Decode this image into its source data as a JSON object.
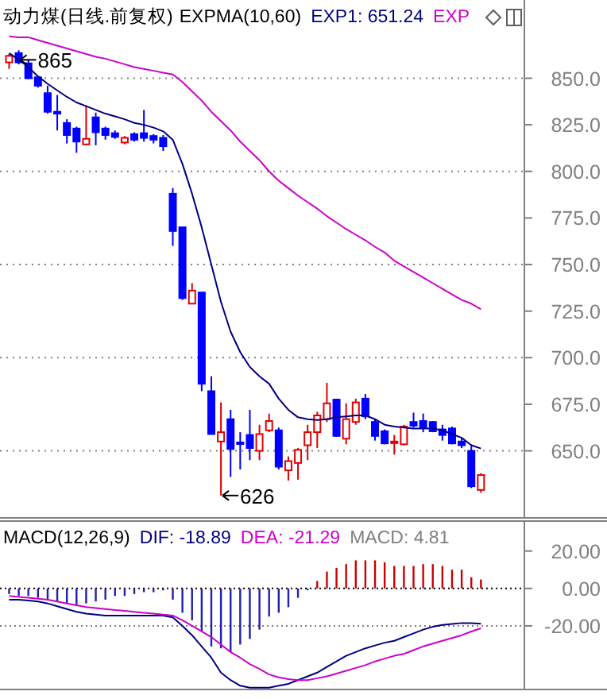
{
  "chart_data": [
    {
      "type": "candlestick",
      "title": "动力煤(日线.前复权)",
      "subtitle": "EXPMA(10,60)",
      "tick_labels": "y",
      "legend": "top",
      "grid": "y",
      "categories": [
        null,
        null,
        null,
        null,
        null,
        null,
        null,
        null,
        null,
        null,
        null,
        null,
        null,
        null,
        null,
        null,
        null,
        null,
        null,
        null,
        null,
        null,
        null,
        null,
        null,
        null,
        null,
        null,
        null,
        null,
        null,
        null,
        null,
        null,
        null,
        null,
        null,
        null,
        null,
        null,
        null,
        null,
        null,
        null,
        null,
        null,
        null,
        null,
        null,
        null
      ],
      "ohlc": [
        [
          858.5,
          863,
          855,
          862
        ],
        [
          863.5,
          865,
          857.5,
          858.5
        ],
        [
          858,
          860,
          849.5,
          850
        ],
        [
          850.5,
          850.5,
          845,
          846
        ],
        [
          842,
          846,
          831,
          832
        ],
        [
          832,
          841,
          822,
          831
        ],
        [
          826,
          828,
          815,
          819.5
        ],
        [
          823,
          824,
          810,
          816
        ],
        [
          814.5,
          835.5,
          814,
          817.5
        ],
        [
          829,
          831.5,
          814,
          821
        ],
        [
          823,
          824,
          817,
          819.5
        ],
        [
          820.5,
          822,
          817.5,
          818.5
        ],
        [
          815.5,
          819,
          814.5,
          818
        ],
        [
          820,
          821,
          816,
          817
        ],
        [
          820.5,
          833,
          816,
          818
        ],
        [
          819,
          820,
          815,
          817
        ],
        [
          818,
          819.5,
          811,
          813.5
        ],
        [
          788,
          791,
          760,
          768
        ],
        [
          770,
          770,
          731,
          732
        ],
        [
          729,
          740,
          729,
          736
        ],
        [
          735,
          735,
          682,
          686
        ],
        [
          682,
          690,
          659,
          659
        ],
        [
          655,
          676,
          626,
          660
        ],
        [
          667,
          672,
          636,
          651
        ],
        [
          654.5,
          660,
          640,
          654
        ],
        [
          658.5,
          672,
          645,
          651.5
        ],
        [
          650,
          664,
          645,
          659
        ],
        [
          661,
          670,
          660,
          666
        ],
        [
          661,
          662.5,
          640,
          641.5
        ],
        [
          639.5,
          647,
          634,
          644.5
        ],
        [
          643.5,
          651.5,
          634.5,
          650.5
        ],
        [
          653,
          664,
          645,
          660
        ],
        [
          660,
          671,
          651.5,
          669
        ],
        [
          667,
          686.5,
          665.5,
          675.5
        ],
        [
          677.5,
          678,
          657.5,
          658
        ],
        [
          656.5,
          675.5,
          653.5,
          667
        ],
        [
          665.5,
          678,
          664,
          676
        ],
        [
          678,
          680.5,
          667,
          668.5
        ],
        [
          665.5,
          667,
          655.5,
          658
        ],
        [
          660.5,
          661.5,
          653.5,
          654
        ],
        [
          654.5,
          658.5,
          648,
          655
        ],
        [
          653.5,
          664,
          653,
          663
        ],
        [
          665.5,
          670.5,
          662.5,
          663.5
        ],
        [
          666,
          670,
          660,
          662.5
        ],
        [
          665.5,
          666,
          660,
          660.5
        ],
        [
          661.5,
          664,
          655.5,
          658.5
        ],
        [
          662,
          663,
          653.5,
          654
        ],
        [
          655,
          657,
          651.5,
          653
        ],
        [
          650,
          653.5,
          630,
          631
        ],
        [
          629,
          638,
          627.5,
          637
        ]
      ],
      "series": [
        {
          "name": "EXP1: 651.24",
          "type": "line",
          "color": "#000080",
          "values": [
            863.5,
            860,
            856,
            851,
            847,
            843.5,
            840,
            837,
            835,
            833,
            831,
            829.5,
            828,
            826,
            825,
            823.5,
            821.5,
            817,
            804,
            788,
            770,
            750,
            730,
            714,
            703,
            695,
            690,
            686,
            678,
            672,
            668,
            667,
            666.5,
            667,
            668,
            668.5,
            669,
            669,
            667,
            664,
            663,
            662.5,
            662,
            662,
            662,
            661,
            659,
            657,
            653,
            651.24
          ]
        },
        {
          "name": "EXP",
          "type": "line",
          "color": "#cc00cc",
          "values": [
            872.5,
            872,
            872,
            870.5,
            869,
            867.5,
            866,
            864.5,
            863,
            861.5,
            860.5,
            859,
            857.5,
            856,
            855,
            854,
            853,
            852,
            848,
            843,
            838,
            832,
            827,
            822,
            816,
            811,
            806,
            800,
            795,
            791,
            787,
            783.5,
            780,
            776,
            772.5,
            769,
            766,
            763,
            759.5,
            756.5,
            752,
            749,
            746,
            743,
            740,
            737,
            734,
            731,
            729,
            726
          ]
        }
      ],
      "ylim": [
        614,
        892
      ],
      "yticks": [
        {
          "value": 650,
          "label": "650.0"
        },
        {
          "value": 675,
          "label": "675.0"
        },
        {
          "value": 700,
          "label": "700.0"
        },
        {
          "value": 725,
          "label": "725.0"
        },
        {
          "value": 750,
          "label": "750.0"
        },
        {
          "value": 775,
          "label": "775.0"
        },
        {
          "value": 800,
          "label": "800.0"
        },
        {
          "value": 825,
          "label": "825.0"
        },
        {
          "value": 850,
          "label": "850.0"
        }
      ],
      "annotations": [
        "865",
        "626"
      ]
    },
    {
      "type": "bar",
      "title": "MACD(12,26,9)",
      "tick_labels": "y",
      "legend": "top",
      "categories": [
        null,
        null,
        null,
        null,
        null,
        null,
        null,
        null,
        null,
        null,
        null,
        null,
        null,
        null,
        null,
        null,
        null,
        null,
        null,
        null,
        null,
        null,
        null,
        null,
        null,
        null,
        null,
        null,
        null,
        null,
        null,
        null,
        null,
        null,
        null,
        null,
        null,
        null,
        null,
        null,
        null,
        null,
        null,
        null,
        null,
        null,
        null,
        null,
        null,
        null
      ],
      "series": [
        {
          "name": "DIF: -18.89",
          "type": "line",
          "color": "#000080",
          "values": [
            -6,
            -6,
            -6.5,
            -7,
            -8,
            -9.5,
            -11,
            -12.5,
            -13.5,
            -14,
            -14.5,
            -14.5,
            -14.5,
            -14.5,
            -14.5,
            -14.5,
            -14.5,
            -15.5,
            -20,
            -25,
            -31,
            -37,
            -45,
            -49,
            -52,
            -53,
            -53,
            -53,
            -52,
            -51,
            -49,
            -47,
            -45,
            -42,
            -39,
            -36,
            -34,
            -32,
            -30.5,
            -29,
            -28,
            -26,
            -24,
            -22,
            -20.5,
            -19.5,
            -19,
            -18.5,
            -18.5,
            -18.89
          ]
        },
        {
          "name": "DEA: -21.29",
          "type": "line",
          "color": "#cc00cc",
          "values": [
            -4,
            -4.5,
            -5,
            -5.5,
            -6,
            -7,
            -8,
            -9,
            -10,
            -10.5,
            -11,
            -11.5,
            -12,
            -12.5,
            -13,
            -13.5,
            -14,
            -14.5,
            -17,
            -20,
            -23,
            -26,
            -30,
            -34,
            -37,
            -40.5,
            -43,
            -46,
            -47.5,
            -48.5,
            -49,
            -49,
            -48,
            -47,
            -45.5,
            -44,
            -42.5,
            -41,
            -39,
            -37.5,
            -36,
            -35,
            -33,
            -31,
            -29.5,
            -28,
            -26.5,
            -25,
            -23,
            -21.29
          ]
        },
        {
          "name": "MACD: 4.81",
          "type": "bar",
          "values": [
            -3,
            -4,
            -4,
            -5,
            -6,
            -7,
            -8,
            -9,
            -8,
            -7,
            -6,
            -4,
            -4,
            -3,
            -2,
            -2,
            -1,
            -6,
            -13,
            -17,
            -23,
            -31,
            -32,
            -34,
            -30,
            -27,
            -22,
            -15,
            -13,
            -10,
            -5,
            -1,
            4,
            9,
            11,
            13,
            15,
            15,
            15,
            14,
            12,
            12,
            12,
            13,
            13,
            12,
            10,
            10,
            6,
            4.81
          ],
          "colors": [
            "#2020b0",
            "#2020b0",
            "#2020b0",
            "#2020b0",
            "#2020b0",
            "#2020b0",
            "#2020b0",
            "#2020b0",
            "#2020b0",
            "#2020b0",
            "#2020b0",
            "#2020b0",
            "#2020b0",
            "#2020b0",
            "#2020b0",
            "#2020b0",
            "#2020b0",
            "#2020b0",
            "#2020b0",
            "#2020b0",
            "#2020b0",
            "#2020b0",
            "#2020b0",
            "#2020b0",
            "#2020b0",
            "#2020b0",
            "#2020b0",
            "#2020b0",
            "#2020b0",
            "#2020b0",
            "#2020b0",
            "#2020b0",
            "#cc0000",
            "#cc0000",
            "#cc0000",
            "#cc0000",
            "#cc0000",
            "#cc0000",
            "#cc0000",
            "#cc0000",
            "#cc0000",
            "#cc0000",
            "#cc0000",
            "#cc0000",
            "#cc0000",
            "#cc0000",
            "#cc0000",
            "#cc0000",
            "#cc0000",
            "#cc0000"
          ]
        }
      ],
      "ylim": [
        -54,
        36
      ],
      "yticks": [
        {
          "value": 20,
          "label": "20.00"
        },
        {
          "value": 0,
          "label": "0.00"
        },
        {
          "value": -20,
          "label": "-20.00"
        }
      ],
      "ref_lines": [
        {
          "axis": "y",
          "value": 0,
          "color": "#000000",
          "line_style": "dotted"
        },
        {
          "axis": "y",
          "value": -20,
          "color": "#808080",
          "line_style": "dotted"
        }
      ]
    }
  ]
}
